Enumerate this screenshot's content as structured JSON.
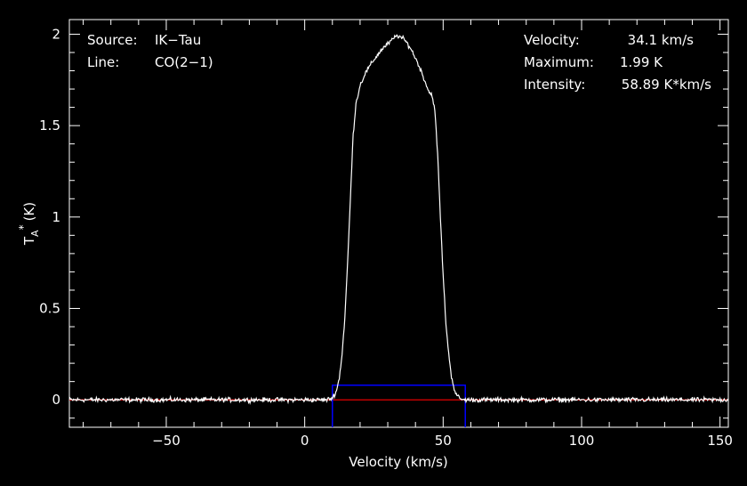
{
  "chart_data": {
    "type": "line",
    "xlabel": "Velocity (km/s)",
    "ylabel": "T",
    "ylabel_sub": "A",
    "ylabel_sup": "*",
    "ylabel_unit": "(K)",
    "xlim": [
      -85,
      153
    ],
    "ylim": [
      -0.15,
      2.08
    ],
    "xticks": [
      -50,
      0,
      50,
      100,
      150
    ],
    "xtick_labels": [
      "−50",
      "0",
      "50",
      "100",
      "150"
    ],
    "yticks": [
      0,
      0.5,
      1,
      1.5,
      2
    ],
    "ytick_labels": [
      "0",
      "0.5",
      "1",
      "1.5",
      "2"
    ],
    "grid": false,
    "colors": {
      "spectrum": "#ffffff",
      "baseline": "#ff0000",
      "window": "#0000ff",
      "axes": "#ffffff",
      "background": "#000000"
    },
    "baseline": 0,
    "window": {
      "x_start": 10,
      "x_end": 58,
      "y_top": 0.08
    },
    "series": [
      {
        "x": [
          -85,
          -70,
          -50,
          -30,
          -10,
          0,
          8,
          10,
          11.5,
          12.5,
          13.5,
          14.5,
          15.5,
          16.5,
          17.5,
          18.5,
          20,
          22,
          25,
          28,
          31,
          33,
          34,
          36,
          38,
          40,
          42,
          44,
          45,
          46,
          47,
          48,
          49,
          50,
          51,
          52,
          53,
          54,
          55,
          56,
          57,
          58,
          60,
          70,
          90,
          110,
          130,
          153
        ],
        "y": [
          0,
          0,
          0,
          0,
          0,
          0,
          0,
          0.01,
          0.05,
          0.12,
          0.25,
          0.45,
          0.75,
          1.1,
          1.45,
          1.62,
          1.72,
          1.79,
          1.86,
          1.92,
          1.96,
          1.99,
          1.99,
          1.97,
          1.93,
          1.87,
          1.8,
          1.72,
          1.68,
          1.67,
          1.58,
          1.35,
          1.0,
          0.68,
          0.42,
          0.25,
          0.13,
          0.06,
          0.02,
          0.01,
          0,
          0,
          0,
          0,
          0,
          0,
          0,
          0
        ]
      }
    ]
  },
  "info": {
    "source_label": "Source:",
    "source_value": "IK−Tau",
    "line_label": "Line:",
    "line_value": "CO(2−1)",
    "velocity_label": "Velocity:",
    "velocity_value": "34.1 km/s",
    "maximum_label": "Maximum:",
    "maximum_value": "1.99 K",
    "intensity_label": "Intensity:",
    "intensity_value": "58.89 K*km/s"
  }
}
